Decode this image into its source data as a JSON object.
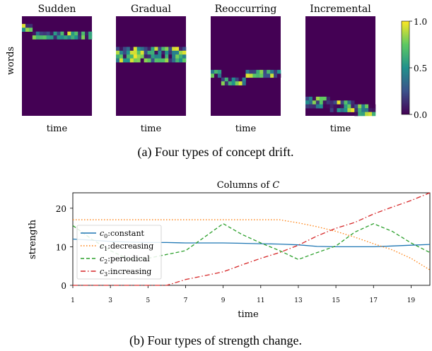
{
  "chart_data": [
    {
      "type": "heatmap",
      "caption": "(a) Four types of concept drift.",
      "ylabel": "words",
      "xlabel": "time",
      "colorbar": {
        "ticks": [
          "1.0",
          "0.5",
          "0.0"
        ],
        "range": [
          0,
          1
        ],
        "colormap": "viridis"
      },
      "panels": [
        {
          "title": "Sudden",
          "grid": [
            20,
            26
          ],
          "bands": [
            {
              "rows": [
                2,
                3
              ],
              "t": [
                0,
                3
              ],
              "density": 0.7
            },
            {
              "rows": [
                4,
                5
              ],
              "t": [
                3,
                20
              ],
              "density": 0.7
            }
          ]
        },
        {
          "title": "Gradual",
          "grid": [
            20,
            26
          ],
          "bands": [
            {
              "rows": [
                8,
                11
              ],
              "t": [
                0,
                20
              ],
              "density": 0.75
            }
          ]
        },
        {
          "title": "Reoccurring",
          "grid": [
            20,
            26
          ],
          "bands": [
            {
              "rows": [
                14,
                15
              ],
              "t": [
                0,
                3
              ],
              "density": 0.7
            },
            {
              "rows": [
                14,
                15
              ],
              "t": [
                10,
                20
              ],
              "density": 0.7
            },
            {
              "rows": [
                16,
                17
              ],
              "t": [
                3,
                10
              ],
              "density": 0.7
            }
          ]
        },
        {
          "title": "Incremental",
          "grid": [
            20,
            26
          ],
          "bands": [
            {
              "rows": [
                21,
                23
              ],
              "t": [
                0,
                20
              ],
              "density": 0.65,
              "drift": 3
            }
          ]
        }
      ]
    },
    {
      "type": "line",
      "title": "Columns of C",
      "title_prefix": "Columns of ",
      "title_var": "C",
      "caption": "(b) Four types of strength change.",
      "xlabel": "time",
      "ylabel": "strength",
      "xlim": [
        1,
        20
      ],
      "ylim": [
        0,
        24
      ],
      "xticks": [
        "1",
        "3",
        "5",
        "7",
        "9",
        "11",
        "13",
        "15",
        "17",
        "19"
      ],
      "yticks": [
        "0",
        "10",
        "20"
      ],
      "legend_position": "center-left",
      "x": [
        1,
        2,
        3,
        4,
        5,
        6,
        7,
        8,
        9,
        10,
        11,
        12,
        13,
        14,
        15,
        16,
        17,
        18,
        19,
        20
      ],
      "series": [
        {
          "name": "c0:constant",
          "sub": "0",
          "desc": ":constant",
          "color": "#1f77b4",
          "dash": "",
          "values": [
            12.0,
            11.7,
            11.4,
            11.2,
            11.1,
            11.1,
            11.0,
            11.0,
            11.0,
            10.9,
            10.8,
            10.7,
            10.5,
            10.1,
            10.0,
            10.0,
            10.0,
            10.2,
            10.4,
            10.6
          ]
        },
        {
          "name": "c1:decreasing",
          "sub": "1",
          "desc": ":decreasing",
          "color": "#ff7f0e",
          "dash": "1.5,2.5",
          "values": [
            17.0,
            17.0,
            17.0,
            17.0,
            17.0,
            17.0,
            17.0,
            17.0,
            17.0,
            17.0,
            17.0,
            17.0,
            16.2,
            15.2,
            14.0,
            12.5,
            10.8,
            9.2,
            7.0,
            4.0
          ]
        },
        {
          "name": "c2:periodical",
          "sub": "2",
          "desc": ":periodical",
          "color": "#2ca02c",
          "dash": "5,3",
          "values": [
            15.5,
            12.0,
            9.0,
            6.7,
            7.0,
            8.0,
            9.0,
            12.5,
            16.0,
            13.2,
            11.0,
            9.0,
            6.7,
            8.5,
            10.2,
            13.8,
            16.0,
            14.0,
            11.0,
            8.5
          ]
        },
        {
          "name": "c3:increasing",
          "sub": "3",
          "desc": ":increasing",
          "color": "#d62728",
          "dash": "7,3,1.5,3",
          "values": [
            0.0,
            0.0,
            0.0,
            0.0,
            0.0,
            0.0,
            1.5,
            2.5,
            3.5,
            5.3,
            7.0,
            8.5,
            10.4,
            12.8,
            14.8,
            16.3,
            18.5,
            20.3,
            22.0,
            24.0
          ]
        }
      ]
    }
  ]
}
